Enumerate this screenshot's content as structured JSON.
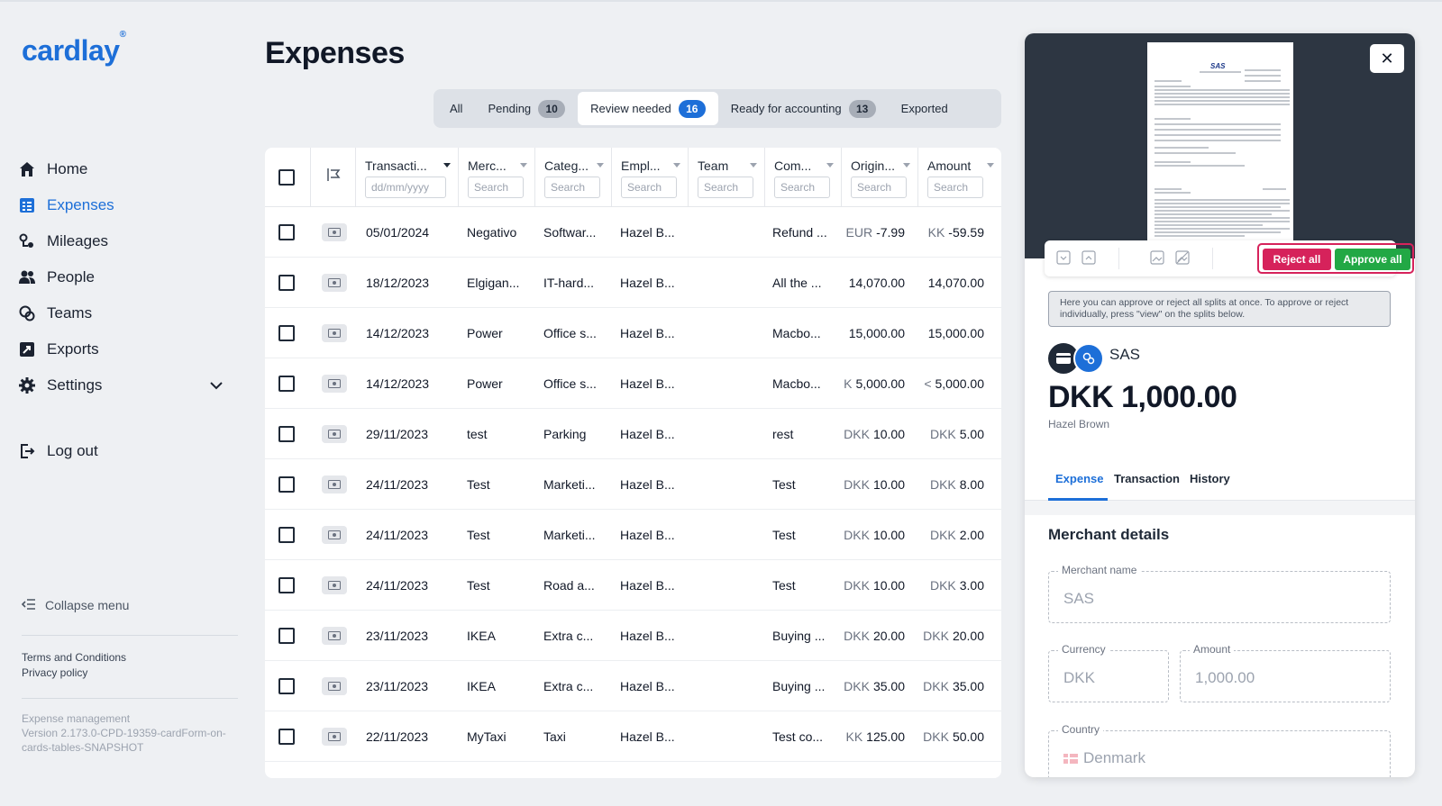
{
  "app": {
    "logo": "cardlay",
    "logo_mark": "®"
  },
  "sidebar": {
    "items": [
      {
        "label": "Home",
        "icon": "home-icon"
      },
      {
        "label": "Expenses",
        "icon": "expenses-icon",
        "active": true
      },
      {
        "label": "Mileages",
        "icon": "mileages-icon"
      },
      {
        "label": "People",
        "icon": "people-icon"
      },
      {
        "label": "Teams",
        "icon": "teams-icon"
      },
      {
        "label": "Exports",
        "icon": "exports-icon"
      },
      {
        "label": "Settings",
        "icon": "gear-icon"
      }
    ],
    "logout": "Log out",
    "collapse": "Collapse menu",
    "terms": "Terms and Conditions",
    "privacy": "Privacy policy",
    "version_line1": "Expense management",
    "version_line2": "Version 2.173.0-CPD-19359-cardForm-on-cards-tables-SNAPSHOT"
  },
  "main": {
    "title": "Expenses",
    "tabs": [
      {
        "label": "All"
      },
      {
        "label": "Pending",
        "count": "10"
      },
      {
        "label": "Review needed",
        "count": "16",
        "active": true
      },
      {
        "label": "Ready for accounting",
        "count": "13"
      },
      {
        "label": "Exported"
      }
    ]
  },
  "table": {
    "columns": [
      {
        "label": "Transacti...",
        "placeholder": "dd/mm/yyyy"
      },
      {
        "label": "Merc...",
        "placeholder": "Search"
      },
      {
        "label": "Categ...",
        "placeholder": "Search"
      },
      {
        "label": "Empl...",
        "placeholder": "Search"
      },
      {
        "label": "Team",
        "placeholder": "Search"
      },
      {
        "label": "Com...",
        "placeholder": "Search"
      },
      {
        "label": "Origin...",
        "placeholder": "Search"
      },
      {
        "label": "Amount",
        "placeholder": "Search"
      }
    ],
    "rows": [
      {
        "date": "05/01/2024",
        "merchant": "Negativo",
        "category": "Softwar...",
        "employee": "Hazel B...",
        "team": "",
        "comment": "Refund ...",
        "orig_cur": "EUR",
        "orig_val": "-7.99",
        "amt_cur": "KK",
        "amt_val": "-59.59"
      },
      {
        "date": "18/12/2023",
        "merchant": "Elgigan...",
        "category": "IT-hard...",
        "employee": "Hazel B...",
        "team": "",
        "comment": "All the ...",
        "orig_cur": "",
        "orig_val": "14,070.00",
        "amt_cur": "",
        "amt_val": "14,070.00"
      },
      {
        "date": "14/12/2023",
        "merchant": "Power",
        "category": "Office s...",
        "employee": "Hazel B...",
        "team": "",
        "comment": "Macbo...",
        "orig_cur": "",
        "orig_val": "15,000.00",
        "amt_cur": "",
        "amt_val": "15,000.00"
      },
      {
        "date": "14/12/2023",
        "merchant": "Power",
        "category": "Office s...",
        "employee": "Hazel B...",
        "team": "",
        "comment": "Macbo...",
        "orig_cur": "K",
        "orig_val": "5,000.00",
        "amt_cur": "<",
        "amt_val": "5,000.00"
      },
      {
        "date": "29/11/2023",
        "merchant": "test",
        "category": "Parking",
        "employee": "Hazel B...",
        "team": "",
        "comment": "rest",
        "orig_cur": "DKK",
        "orig_val": "10.00",
        "amt_cur": "DKK",
        "amt_val": "5.00"
      },
      {
        "date": "24/11/2023",
        "merchant": "Test",
        "category": "Marketi...",
        "employee": "Hazel B...",
        "team": "",
        "comment": "Test",
        "orig_cur": "DKK",
        "orig_val": "10.00",
        "amt_cur": "DKK",
        "amt_val": "8.00"
      },
      {
        "date": "24/11/2023",
        "merchant": "Test",
        "category": "Marketi...",
        "employee": "Hazel B...",
        "team": "",
        "comment": "Test",
        "orig_cur": "DKK",
        "orig_val": "10.00",
        "amt_cur": "DKK",
        "amt_val": "2.00"
      },
      {
        "date": "24/11/2023",
        "merchant": "Test",
        "category": "Road a...",
        "employee": "Hazel B...",
        "team": "",
        "comment": "Test",
        "orig_cur": "DKK",
        "orig_val": "10.00",
        "amt_cur": "DKK",
        "amt_val": "3.00"
      },
      {
        "date": "23/11/2023",
        "merchant": "IKEA",
        "category": "Extra c...",
        "employee": "Hazel B...",
        "team": "",
        "comment": "Buying ...",
        "orig_cur": "DKK",
        "orig_val": "20.00",
        "amt_cur": "DKK",
        "amt_val": "20.00"
      },
      {
        "date": "23/11/2023",
        "merchant": "IKEA",
        "category": "Extra c...",
        "employee": "Hazel B...",
        "team": "",
        "comment": "Buying ...",
        "orig_cur": "DKK",
        "orig_val": "35.00",
        "amt_cur": "DKK",
        "amt_val": "35.00"
      },
      {
        "date": "22/11/2023",
        "merchant": "MyTaxi",
        "category": "Taxi",
        "employee": "Hazel B...",
        "team": "",
        "comment": "Test co...",
        "orig_cur": "KK",
        "orig_val": "125.00",
        "amt_cur": "DKK",
        "amt_val": "50.00"
      }
    ]
  },
  "panel": {
    "close": "✕",
    "reject_all": "Reject all",
    "approve_all": "Approve all",
    "info": "Here you can approve or reject all splits at once. To approve or reject individually, press \"view\" on the splits below.",
    "merchant": "SAS",
    "amount": "DKK 1,000.00",
    "employee": "Hazel Brown",
    "tabs": [
      "Expense",
      "Transaction",
      "History"
    ],
    "section": "Merchant details",
    "fields": {
      "merchant_name": {
        "label": "Merchant name",
        "value": "SAS"
      },
      "currency": {
        "label": "Currency",
        "value": "DKK"
      },
      "amount": {
        "label": "Amount",
        "value": "1,000.00"
      },
      "country": {
        "label": "Country",
        "value": "Denmark"
      }
    },
    "receipt_logo": "SAS"
  },
  "colors": {
    "accent": "#1d6fd8",
    "reject": "#d6225b",
    "approve": "#22a845"
  }
}
